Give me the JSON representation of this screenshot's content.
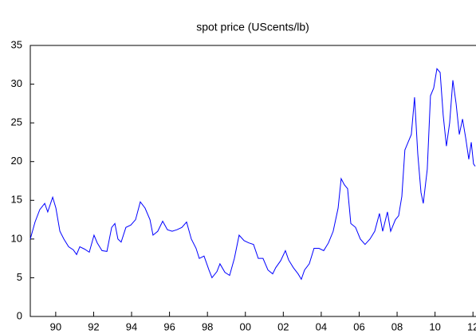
{
  "chart_data": {
    "type": "line",
    "title": "spot price (UScents/lb)",
    "x": [
      1988.66,
      1988.91,
      1989.16,
      1989.42,
      1989.58,
      1989.84,
      1990.01,
      1990.22,
      1990.43,
      1990.68,
      1990.93,
      1991.1,
      1991.27,
      1991.52,
      1991.77,
      1992.02,
      1992.19,
      1992.44,
      1992.7,
      1992.95,
      1993.12,
      1993.28,
      1993.45,
      1993.7,
      1993.96,
      1994.21,
      1994.46,
      1994.71,
      1994.97,
      1995.13,
      1995.38,
      1995.64,
      1995.89,
      1996.14,
      1996.39,
      1996.65,
      1996.9,
      1997.15,
      1997.4,
      1997.57,
      1997.82,
      1998.08,
      1998.24,
      1998.5,
      1998.66,
      1998.92,
      1999.17,
      1999.42,
      1999.67,
      1999.93,
      2000.18,
      2000.43,
      2000.68,
      2000.93,
      2001.19,
      2001.44,
      2001.6,
      2001.86,
      2002.11,
      2002.28,
      2002.53,
      2002.78,
      2002.95,
      2003.12,
      2003.37,
      2003.62,
      2003.88,
      2004.13,
      2004.38,
      2004.63,
      2004.89,
      2005.05,
      2005.22,
      2005.39,
      2005.56,
      2005.81,
      2006.06,
      2006.31,
      2006.57,
      2006.82,
      2007.07,
      2007.24,
      2007.49,
      2007.66,
      2007.91,
      2008.08,
      2008.25,
      2008.41,
      2008.58,
      2008.75,
      2008.92,
      2009.09,
      2009.26,
      2009.38,
      2009.59,
      2009.76,
      2009.93,
      2010.1,
      2010.27,
      2010.43,
      2010.6,
      2010.77,
      2010.94,
      2011.11,
      2011.28,
      2011.45,
      2011.62,
      2011.78,
      2011.91,
      2012.03,
      2012.12
    ],
    "series": [
      {
        "name": "spot price",
        "color": "#0000ff",
        "values": [
          10,
          12.2,
          13.8,
          14.6,
          13.5,
          15.4,
          14,
          11,
          10,
          9,
          8.6,
          8,
          9,
          8.7,
          8.3,
          10.5,
          9.5,
          8.5,
          8.4,
          11.5,
          12,
          10,
          9.6,
          11.5,
          11.8,
          12.5,
          14.8,
          14,
          12.5,
          10.5,
          11,
          12.3,
          11.2,
          11,
          11.2,
          11.5,
          12.2,
          10,
          8.8,
          7.5,
          7.8,
          6,
          5,
          5.8,
          6.8,
          5.7,
          5.3,
          7.5,
          10.5,
          9.8,
          9.5,
          9.3,
          7.5,
          7.5,
          6,
          5.5,
          6.3,
          7.2,
          8.5,
          7.3,
          6.3,
          5.5,
          4.8,
          6,
          6.8,
          8.8,
          8.8,
          8.5,
          9.5,
          11,
          14,
          17.8,
          17,
          16.5,
          12,
          11.5,
          10,
          9.3,
          10,
          11,
          13.3,
          11,
          13.5,
          11,
          12.5,
          13,
          15.5,
          21.5,
          22.5,
          23.5,
          28.3,
          21,
          16,
          14.6,
          19,
          28.5,
          29.5,
          32,
          31.5,
          26,
          22,
          25,
          30.5,
          27.5,
          23.5,
          25.5,
          23,
          20.3,
          22.5,
          19.7,
          19.4
        ]
      }
    ],
    "xlim": [
      1988.66,
      2012.16
    ],
    "xticks": [
      {
        "value": 1990,
        "label": "90"
      },
      {
        "value": 1992,
        "label": "92"
      },
      {
        "value": 1994,
        "label": "94"
      },
      {
        "value": 1996,
        "label": "96"
      },
      {
        "value": 1998,
        "label": "98"
      },
      {
        "value": 2000,
        "label": "00"
      },
      {
        "value": 2002,
        "label": "02"
      },
      {
        "value": 2004,
        "label": "04"
      },
      {
        "value": 2006,
        "label": "06"
      },
      {
        "value": 2008,
        "label": "08"
      },
      {
        "value": 2010,
        "label": "10"
      },
      {
        "value": 2012,
        "label": "12"
      }
    ],
    "ylim": [
      0,
      35
    ],
    "yticks": [
      0,
      5,
      10,
      15,
      20,
      25,
      30,
      35
    ],
    "grid": false
  }
}
